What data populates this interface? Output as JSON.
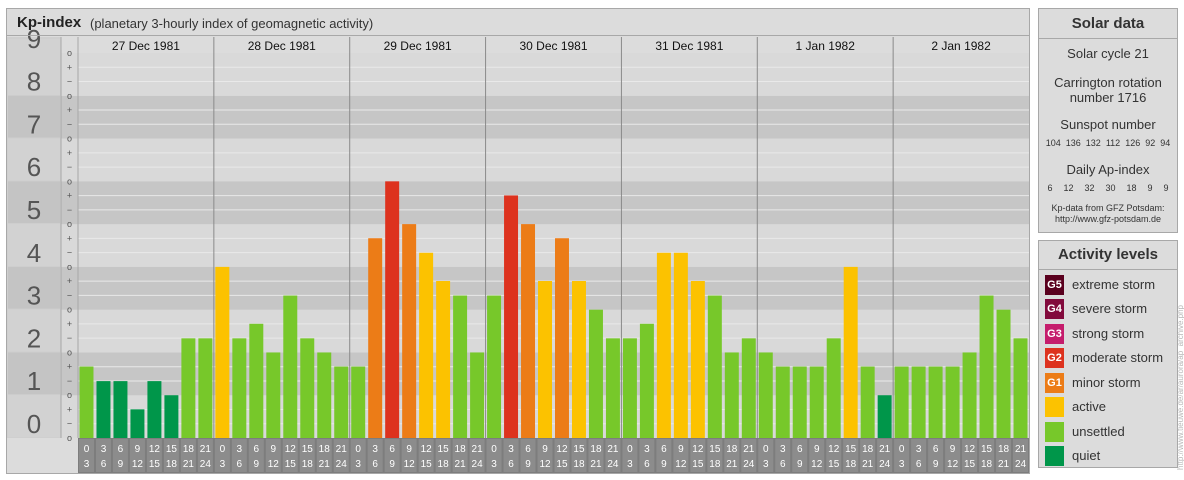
{
  "header": {
    "title": "Kp-index",
    "subtitle": "(planetary 3-hourly index of geomagnetic activity)"
  },
  "chart_data": {
    "type": "bar",
    "y_range": [
      0,
      9
    ],
    "y_ticks": [
      "0",
      "1",
      "2",
      "3",
      "4",
      "5",
      "6",
      "7",
      "8",
      "9"
    ],
    "sub_ticks": [
      "o",
      "−",
      "+"
    ],
    "days": [
      "27 Dec 1981",
      "28 Dec 1981",
      "29 Dec 1981",
      "30 Dec 1981",
      "31 Dec 1981",
      "1 Jan 1982",
      "2 Jan 1982"
    ],
    "hour_labels_top": [
      "0",
      "3",
      "6",
      "9",
      "12",
      "15",
      "18",
      "21"
    ],
    "hour_labels_bottom": [
      "3",
      "6",
      "9",
      "12",
      "15",
      "18",
      "21",
      "24"
    ],
    "values": [
      1.67,
      1.33,
      1.33,
      0.67,
      1.33,
      1.0,
      2.33,
      2.33,
      4.0,
      2.33,
      2.67,
      2.0,
      3.33,
      2.33,
      2.0,
      1.67,
      1.67,
      4.67,
      6.0,
      5.0,
      4.33,
      3.67,
      3.33,
      2.0,
      3.33,
      5.67,
      5.0,
      3.67,
      4.67,
      3.67,
      3.0,
      2.33,
      2.33,
      2.67,
      4.33,
      4.33,
      3.67,
      3.33,
      2.0,
      2.33,
      2.0,
      1.67,
      1.67,
      1.67,
      2.33,
      4.0,
      1.67,
      1.0,
      1.67,
      1.67,
      1.67,
      1.67,
      2.0,
      3.33,
      3.0,
      2.33
    ],
    "level_colors": {
      "quiet": "#00964a",
      "unsettled": "#77c82a",
      "active": "#fcc200",
      "minor_storm": "#ec7c17",
      "moderate_storm": "#dd321e",
      "strong_storm": "#c51d6c",
      "severe_storm": "#820a3c",
      "extreme_storm": "#5a001e"
    }
  },
  "solar": {
    "title": "Solar data",
    "cycle": "Solar cycle 21",
    "carrington_line1": "Carrington rotation",
    "carrington_line2": "number 1716",
    "sunspot_label": "Sunspot number",
    "sunspots": [
      "104",
      "136",
      "132",
      "112",
      "126",
      "92",
      "94"
    ],
    "ap_label": "Daily Ap-index",
    "ap": [
      "6",
      "12",
      "32",
      "30",
      "18",
      "9",
      "9"
    ],
    "source_line1": "Kp-data from GFZ Potsdam:",
    "source_line2": "http://www.gfz-potsdam.de"
  },
  "activity": {
    "title": "Activity levels",
    "levels": [
      {
        "code": "G5",
        "label": "extreme storm",
        "color": "#5a001e"
      },
      {
        "code": "G4",
        "label": "severe storm",
        "color": "#820a3c"
      },
      {
        "code": "G3",
        "label": "strong storm",
        "color": "#c51d6c"
      },
      {
        "code": "G2",
        "label": "moderate storm",
        "color": "#dd321e"
      },
      {
        "code": "G1",
        "label": "minor storm",
        "color": "#ec7c17"
      },
      {
        "code": "",
        "label": "active",
        "color": "#fcc200"
      },
      {
        "code": "",
        "label": "unsettled",
        "color": "#77c82a"
      },
      {
        "code": "",
        "label": "quiet",
        "color": "#00964a"
      }
    ]
  },
  "watermark": "http://www.tieuwe.de/ar/aurora/ap_archive.php"
}
